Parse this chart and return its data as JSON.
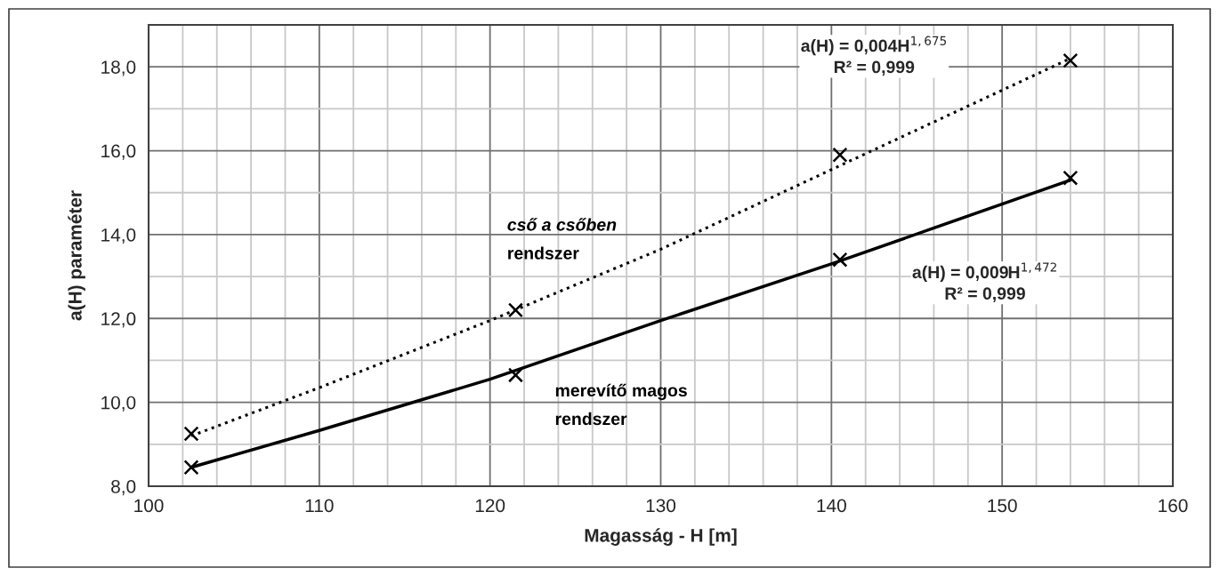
{
  "chart_data": {
    "type": "scatter",
    "xlabel": "Magasság - H [m]",
    "ylabel": "a(H) paraméter",
    "xlim": [
      100,
      160
    ],
    "ylim": [
      8,
      19
    ],
    "xticks": [
      100,
      {
        "value": 102,
        "label": null
      },
      {
        "value": 104,
        "label": null
      },
      {
        "value": 106,
        "label": null
      },
      {
        "value": 108,
        "label": null
      },
      110,
      {
        "value": 112,
        "label": null
      },
      {
        "value": 114,
        "label": null
      },
      {
        "value": 116,
        "label": null
      },
      {
        "value": 118,
        "label": null
      },
      120,
      {
        "value": 122,
        "label": null
      },
      {
        "value": 124,
        "label": null
      },
      {
        "value": 126,
        "label": null
      },
      {
        "value": 128,
        "label": null
      },
      130,
      {
        "value": 132,
        "label": null
      },
      {
        "value": 134,
        "label": null
      },
      {
        "value": 136,
        "label": null
      },
      {
        "value": 138,
        "label": null
      },
      140,
      {
        "value": 142,
        "label": null
      },
      {
        "value": 144,
        "label": null
      },
      {
        "value": 146,
        "label": null
      },
      {
        "value": 148,
        "label": null
      },
      150,
      {
        "value": 152,
        "label": null
      },
      {
        "value": 154,
        "label": null
      },
      {
        "value": 156,
        "label": null
      },
      {
        "value": 158,
        "label": null
      },
      160
    ],
    "yticks": [
      {
        "value": 8,
        "label": "8,0"
      },
      {
        "value": 9,
        "label": null
      },
      {
        "value": 10,
        "label": "10,0"
      },
      {
        "value": 11,
        "label": null
      },
      {
        "value": 12,
        "label": "12,0"
      },
      {
        "value": 13,
        "label": null
      },
      {
        "value": 14,
        "label": "14,0"
      },
      {
        "value": 15,
        "label": null
      },
      {
        "value": 16,
        "label": "16,0"
      },
      {
        "value": 17,
        "label": null
      },
      {
        "value": 18,
        "label": "18,0"
      },
      {
        "value": 19,
        "label": null
      }
    ],
    "grid": true,
    "series": [
      {
        "name": "cső a csőben\nrendszer",
        "marker": "cross",
        "color": "#000000",
        "x": [
          102.5,
          121.5,
          140.5,
          154
        ],
        "values": [
          9.25,
          12.2,
          15.9,
          18.15
        ]
      },
      {
        "name": "merevítő magos\nrendszer",
        "marker": "cross",
        "color": "#000000",
        "x": [
          102.5,
          121.5,
          140.5,
          154
        ],
        "values": [
          8.45,
          10.65,
          13.4,
          15.35
        ]
      },
      {
        "type": "line",
        "line_style": "dotted",
        "color": "#000000",
        "x": [
          102.5,
          110,
          120,
          130,
          140,
          154
        ],
        "values": [
          9.2,
          10.35,
          11.95,
          13.65,
          15.55,
          18.2
        ]
      },
      {
        "type": "line",
        "line_style": "solid",
        "color": "#000000",
        "x": [
          102.5,
          110,
          120,
          130,
          140,
          154
        ],
        "values": [
          8.45,
          9.33,
          10.55,
          11.95,
          13.3,
          15.3
        ]
      }
    ],
    "annotations": [
      "a(H) = 0,004H$^{1,675}$\nR² = 0,999",
      "a(H) = 0,009H$^{1,472}$\nR² = 0,999"
    ]
  }
}
